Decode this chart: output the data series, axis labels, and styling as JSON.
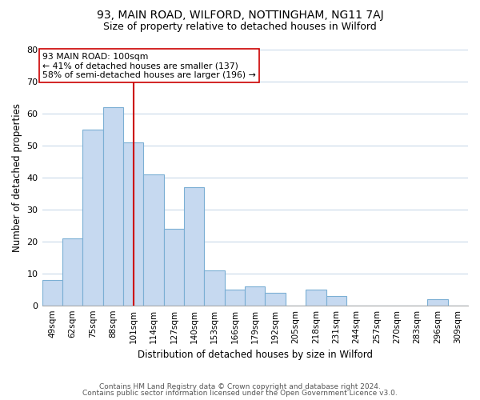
{
  "title": "93, MAIN ROAD, WILFORD, NOTTINGHAM, NG11 7AJ",
  "subtitle": "Size of property relative to detached houses in Wilford",
  "xlabel": "Distribution of detached houses by size in Wilford",
  "ylabel": "Number of detached properties",
  "bar_labels": [
    "49sqm",
    "62sqm",
    "75sqm",
    "88sqm",
    "101sqm",
    "114sqm",
    "127sqm",
    "140sqm",
    "153sqm",
    "166sqm",
    "179sqm",
    "192sqm",
    "205sqm",
    "218sqm",
    "231sqm",
    "244sqm",
    "257sqm",
    "270sqm",
    "283sqm",
    "296sqm",
    "309sqm"
  ],
  "bar_values": [
    8,
    21,
    55,
    62,
    51,
    41,
    24,
    37,
    11,
    5,
    6,
    4,
    0,
    5,
    3,
    0,
    0,
    0,
    0,
    2,
    0
  ],
  "bar_color": "#c6d9f0",
  "bar_edge_color": "#7bafd4",
  "vline_x": 4,
  "vline_color": "#cc0000",
  "annotation_line1": "93 MAIN ROAD: 100sqm",
  "annotation_line2": "← 41% of detached houses are smaller (137)",
  "annotation_line3": "58% of semi-detached houses are larger (196) →",
  "annotation_box_color": "white",
  "annotation_box_edge": "#cc0000",
  "ylim": [
    0,
    80
  ],
  "yticks": [
    0,
    10,
    20,
    30,
    40,
    50,
    60,
    70,
    80
  ],
  "footnote1": "Contains HM Land Registry data © Crown copyright and database right 2024.",
  "footnote2": "Contains public sector information licensed under the Open Government Licence v3.0.",
  "bg_color": "#ffffff",
  "grid_color": "#c8d8ea",
  "title_fontsize": 10,
  "subtitle_fontsize": 9
}
